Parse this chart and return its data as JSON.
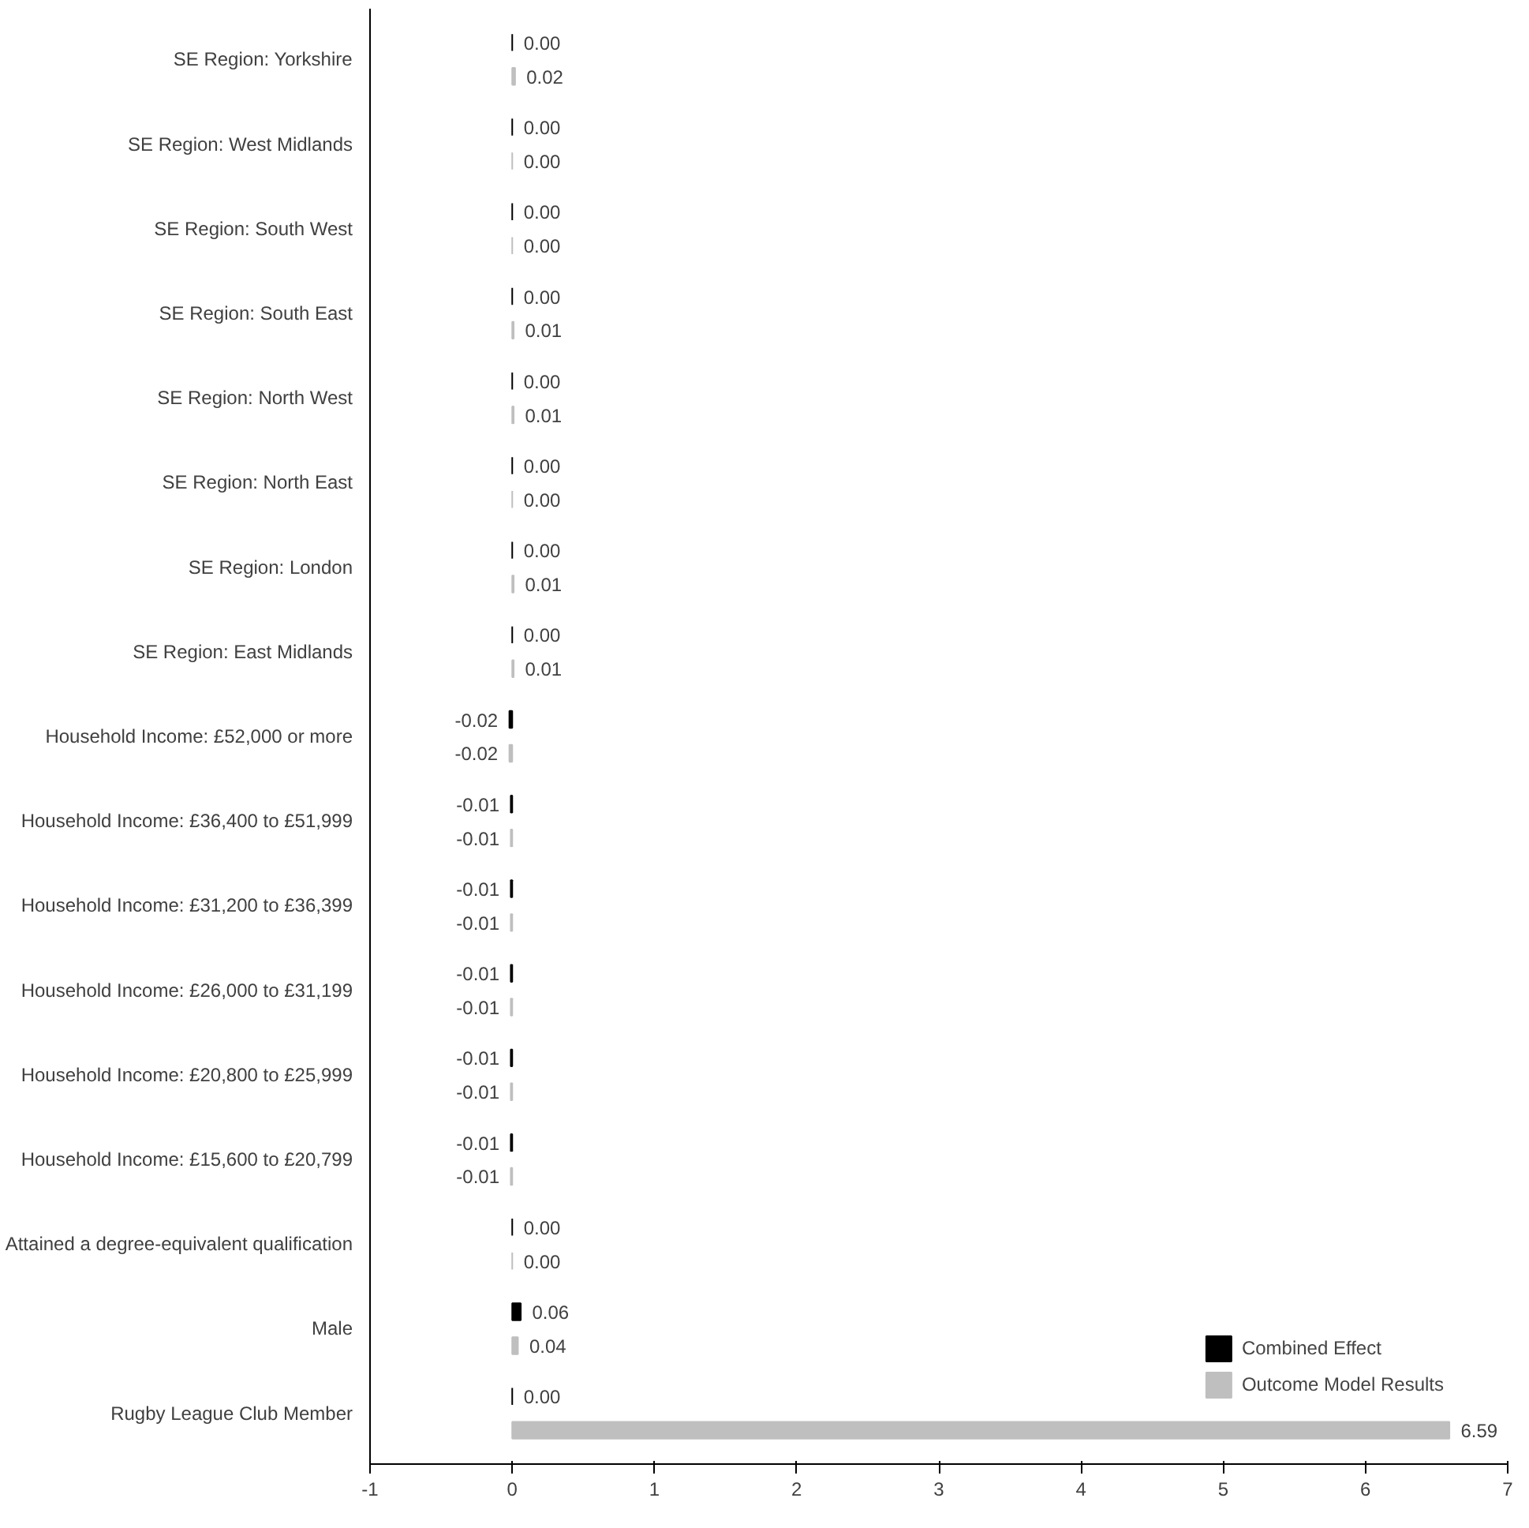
{
  "chart_data": {
    "type": "bar",
    "orientation": "horizontal",
    "categories": [
      "SE Region: Yorkshire",
      "SE Region: West Midlands",
      "SE Region: South West",
      "SE Region: South East",
      "SE Region: North West",
      "SE Region: North East",
      "SE Region: London",
      "SE Region: East Midlands",
      "Household Income: £52,000 or more",
      "Household Income: £36,400 to £51,999",
      "Household Income: £31,200 to £36,399",
      "Household Income: £26,000 to £31,199",
      "Household Income: £20,800 to £25,999",
      "Household Income: £15,600 to £20,799",
      "Attained a degree-equivalent qualification",
      "Male",
      "Rugby League Club Member"
    ],
    "series": [
      {
        "name": "Combined Effect",
        "color": "#000000",
        "values": [
          0,
          0,
          0,
          0,
          0,
          0,
          0,
          0,
          -0.02,
          -0.01,
          -0.01,
          -0.01,
          -0.01,
          -0.01,
          0,
          0.06,
          0
        ],
        "value_labels": [
          "0.00",
          "0.00",
          "0.00",
          "0.00",
          "0.00",
          "0.00",
          "0.00",
          "0.00",
          "-0.02",
          "-0.01",
          "-0.01",
          "-0.01",
          "-0.01",
          "-0.01",
          "0.00",
          "0.06",
          "0.00"
        ]
      },
      {
        "name": "Outcome Model Results",
        "color": "#bfbfbf",
        "values": [
          0.02,
          0,
          0,
          0.01,
          0.01,
          0,
          0.01,
          0.01,
          -0.02,
          -0.01,
          -0.01,
          -0.01,
          -0.01,
          -0.01,
          0,
          0.04,
          6.59
        ],
        "value_labels": [
          "0.02",
          "0.00",
          "0.00",
          "0.01",
          "0.01",
          "0.00",
          "0.01",
          "0.01",
          "-0.02",
          "-0.01",
          "-0.01",
          "-0.01",
          "-0.01",
          "-0.01",
          "0.00",
          "0.04",
          "6.59"
        ]
      }
    ],
    "xlim": [
      -1,
      7
    ],
    "xticks": [
      -1,
      0,
      1,
      2,
      3,
      4,
      5,
      6,
      7
    ],
    "grid": false,
    "legend": "bottom right"
  }
}
